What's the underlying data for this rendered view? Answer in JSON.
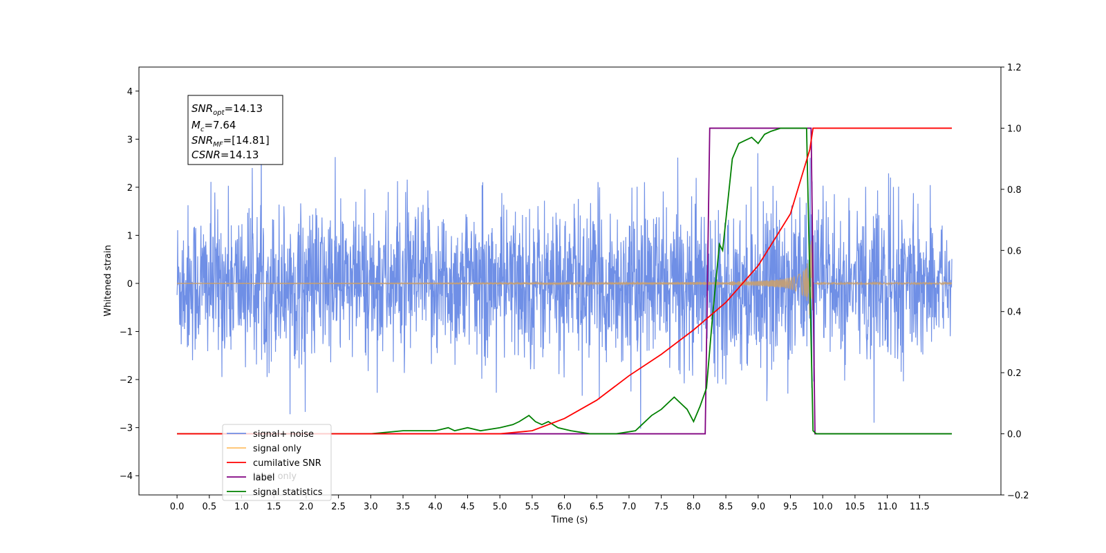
{
  "chart_data": {
    "type": "line",
    "title": "",
    "xlabel": "Time (s)",
    "ylabel": "Whitened strain",
    "ylabel_right": "",
    "xlim": [
      -0.59,
      12.76
    ],
    "ylim": [
      -4.4,
      4.5
    ],
    "ylim_right": [
      -0.2,
      1.2
    ],
    "x_ticks": [
      "0.0",
      "0.5",
      "1.0",
      "1.5",
      "2.0",
      "2.5",
      "3.0",
      "3.5",
      "4.0",
      "4.5",
      "5.0",
      "5.5",
      "6.0",
      "6.5",
      "7.0",
      "7.5",
      "8.0",
      "8.5",
      "9.0",
      "9.5",
      "10.0",
      "10.5",
      "11.0",
      "11.5"
    ],
    "y_ticks": [
      "4",
      "3",
      "2",
      "1",
      "0",
      "−1",
      "−2",
      "−3",
      "−4"
    ],
    "y_ticks_right": [
      "1.2",
      "1.0",
      "0.8",
      "0.6",
      "0.4",
      "0.2",
      "0.0",
      "−0.2"
    ],
    "annotation": {
      "lines": [
        {
          "sym": "SNR",
          "sub": "opt",
          "value": "=14.13"
        },
        {
          "sym": "M",
          "sub": "c",
          "value": "=7.64"
        },
        {
          "sym": "SNR",
          "sub": "MF",
          "value": "=[14.81]"
        },
        {
          "sym": "CSNR",
          "sub": "",
          "value": "=14.13"
        }
      ]
    },
    "legend": {
      "position": "lower-left",
      "entries": [
        {
          "label": "signal+ noise",
          "color": "#6f8fe6"
        },
        {
          "label": "signal only",
          "color": "#ffbf66"
        },
        {
          "label": "cumilative SNR",
          "color": "#ff0000"
        },
        {
          "label": "label",
          "color": "#800080"
        },
        {
          "label": "signal statistics",
          "color": "#008000"
        }
      ],
      "hidden_entry": "label only"
    },
    "series": [
      {
        "name": "signal+ noise",
        "axis": "left",
        "color": "#6f8fe6",
        "x_range": [
          0.0,
          12.0
        ],
        "noise_sigma": 0.8
      },
      {
        "name": "signal only",
        "axis": "left",
        "color": "#c8a070",
        "x_range": [
          0.0,
          12.0
        ],
        "chirp_end": 9.85,
        "max_amplitude": 0.9
      },
      {
        "name": "cumilative SNR",
        "axis": "right",
        "color": "#ff0000",
        "x": [
          0.0,
          5.0,
          5.5,
          6.0,
          6.5,
          7.0,
          7.5,
          8.0,
          8.5,
          9.0,
          9.5,
          9.8,
          9.85,
          12.0
        ],
        "values": [
          0.0,
          0.0,
          0.01,
          0.05,
          0.11,
          0.19,
          0.26,
          0.34,
          0.43,
          0.55,
          0.72,
          0.93,
          1.0,
          1.0
        ]
      },
      {
        "name": "label",
        "axis": "right",
        "color": "#800080",
        "x": [
          0.0,
          8.18,
          8.25,
          9.82,
          9.88,
          12.0
        ],
        "values": [
          0.0,
          0.0,
          1.0,
          1.0,
          0.0,
          0.0
        ]
      },
      {
        "name": "signal statistics",
        "axis": "right",
        "color": "#008000",
        "x": [
          0.0,
          3.0,
          3.5,
          4.0,
          4.2,
          4.3,
          4.5,
          4.7,
          5.0,
          5.2,
          5.3,
          5.45,
          5.55,
          5.65,
          5.75,
          5.9,
          6.1,
          6.4,
          6.8,
          7.1,
          7.2,
          7.35,
          7.5,
          7.7,
          7.8,
          7.9,
          8.0,
          8.1,
          8.2,
          8.3,
          8.4,
          8.45,
          8.5,
          8.55,
          8.6,
          8.7,
          8.8,
          8.9,
          9.0,
          9.1,
          9.2,
          9.35,
          9.5,
          9.75,
          9.85,
          9.9,
          12.0
        ],
        "values": [
          0.0,
          0.0,
          0.01,
          0.01,
          0.02,
          0.01,
          0.02,
          0.01,
          0.02,
          0.03,
          0.04,
          0.06,
          0.04,
          0.03,
          0.04,
          0.02,
          0.01,
          0.0,
          0.0,
          0.01,
          0.03,
          0.06,
          0.08,
          0.12,
          0.1,
          0.08,
          0.04,
          0.09,
          0.15,
          0.4,
          0.62,
          0.6,
          0.7,
          0.8,
          0.9,
          0.95,
          0.96,
          0.97,
          0.95,
          0.98,
          0.99,
          1.0,
          1.0,
          1.0,
          0.01,
          0.0,
          0.0
        ]
      }
    ]
  }
}
